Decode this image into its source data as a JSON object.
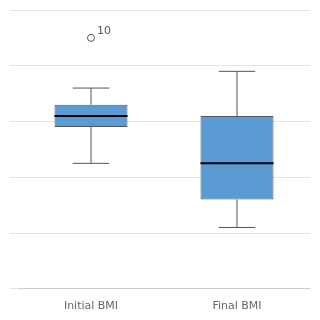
{
  "chart_data": {
    "type": "box",
    "categories": [
      "Initial BMI",
      "Final BMI"
    ],
    "boxes": [
      {
        "whislo": 55,
        "q1": 42,
        "med": 38,
        "q3": 34,
        "whishi": 28,
        "fliers": [
          10
        ]
      },
      {
        "whislo": 78,
        "q1": 68,
        "med": 55,
        "q3": 38,
        "whishi": 22,
        "fliers": []
      }
    ],
    "color": "#5B9BD5",
    "annotations": [
      {
        "category": "Initial BMI",
        "y": 10,
        "text": "10"
      }
    ],
    "ylim": [
      100,
      0
    ],
    "yticks": [
      0,
      20,
      40,
      60,
      80,
      100
    ],
    "grid": true,
    "tick_labels": "x"
  }
}
